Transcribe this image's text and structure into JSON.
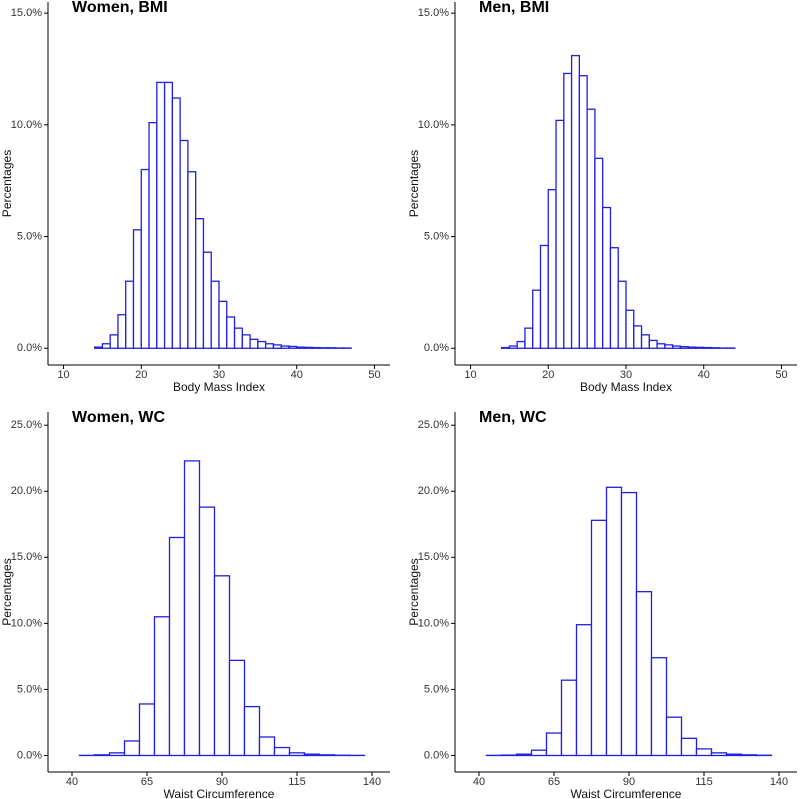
{
  "chart_data": [
    {
      "type": "histogram",
      "title": "Women, BMI",
      "x_label": "Body Mass Index",
      "y_label": "Percentages",
      "color": "#2020e0",
      "bins": [
        10,
        11,
        12,
        13,
        14,
        15,
        16,
        17,
        18,
        19,
        20,
        21,
        22,
        23,
        24,
        25,
        26,
        27,
        28,
        29,
        30,
        31,
        32,
        33,
        34,
        35,
        36,
        37,
        38,
        39,
        40,
        41,
        42,
        43,
        44,
        45,
        46,
        47,
        48,
        49,
        50
      ],
      "values": [
        0,
        0,
        0,
        0,
        0.05,
        0.2,
        0.6,
        1.5,
        3.0,
        5.3,
        8.0,
        10.1,
        11.9,
        11.9,
        11.2,
        9.3,
        7.9,
        5.8,
        4.3,
        3.0,
        2.1,
        1.4,
        0.9,
        0.6,
        0.4,
        0.3,
        0.2,
        0.15,
        0.1,
        0.08,
        0.05,
        0.04,
        0.03,
        0.02,
        0.02,
        0.01,
        0.01,
        0,
        0,
        0
      ],
      "xlim": [
        8,
        52
      ],
      "xticks": [
        10,
        20,
        30,
        40,
        50
      ],
      "ylim": [
        -0.75,
        15.5
      ],
      "yticks": [
        {
          "value": 0,
          "label": "0.0%"
        },
        {
          "value": 5,
          "label": "5.0%"
        },
        {
          "value": 10,
          "label": "10.0%"
        },
        {
          "value": 15,
          "label": "15.0%"
        }
      ]
    },
    {
      "type": "histogram",
      "title": "Men, BMI",
      "x_label": "Body Mass Index",
      "y_label": "Percentages",
      "color": "#2020e0",
      "bins": [
        10,
        11,
        12,
        13,
        14,
        15,
        16,
        17,
        18,
        19,
        20,
        21,
        22,
        23,
        24,
        25,
        26,
        27,
        28,
        29,
        30,
        31,
        32,
        33,
        34,
        35,
        36,
        37,
        38,
        39,
        40,
        41,
        42,
        43,
        44,
        45,
        46,
        47,
        48,
        49,
        50
      ],
      "values": [
        0,
        0,
        0,
        0,
        0.03,
        0.1,
        0.3,
        0.9,
        2.6,
        4.6,
        7.1,
        10.2,
        12.3,
        13.1,
        12.2,
        10.7,
        8.5,
        6.3,
        4.5,
        3.0,
        1.7,
        1.0,
        0.6,
        0.35,
        0.2,
        0.15,
        0.1,
        0.07,
        0.05,
        0.04,
        0.03,
        0.02,
        0.01,
        0.01,
        0,
        0,
        0,
        0,
        0,
        0
      ],
      "xlim": [
        8,
        52
      ],
      "xticks": [
        10,
        20,
        30,
        40,
        50
      ],
      "ylim": [
        -0.75,
        15.5
      ],
      "yticks": [
        {
          "value": 0,
          "label": "0.0%"
        },
        {
          "value": 5,
          "label": "5.0%"
        },
        {
          "value": 10,
          "label": "10.0%"
        },
        {
          "value": 15,
          "label": "15.0%"
        }
      ]
    },
    {
      "type": "histogram",
      "title": "Women, WC",
      "x_label": "Waist Circumference",
      "y_label": "Percentages",
      "color": "#2020e0",
      "bins": [
        37.5,
        42.5,
        47.5,
        52.5,
        57.5,
        62.5,
        67.5,
        72.5,
        77.5,
        82.5,
        87.5,
        92.5,
        97.5,
        102.5,
        107.5,
        112.5,
        117.5,
        122.5,
        127.5,
        132.5,
        137.5,
        142.5
      ],
      "values": [
        0,
        0.01,
        0.05,
        0.2,
        1.1,
        3.9,
        10.5,
        16.5,
        22.3,
        18.8,
        13.6,
        7.2,
        3.7,
        1.4,
        0.6,
        0.2,
        0.1,
        0.05,
        0.02,
        0.01,
        0
      ],
      "xlim": [
        32,
        146
      ],
      "xticks": [
        40,
        65,
        90,
        115,
        140
      ],
      "ylim": [
        -1.25,
        26
      ],
      "yticks": [
        {
          "value": 0,
          "label": "0.0%"
        },
        {
          "value": 5,
          "label": "5.0%"
        },
        {
          "value": 10,
          "label": "10.0%"
        },
        {
          "value": 15,
          "label": "15.0%"
        },
        {
          "value": 20,
          "label": "20.0%"
        },
        {
          "value": 25,
          "label": "25.0%"
        }
      ]
    },
    {
      "type": "histogram",
      "title": "Men, WC",
      "x_label": "Waist Circumference",
      "y_label": "Percentages",
      "color": "#2020e0",
      "bins": [
        37.5,
        42.5,
        47.5,
        52.5,
        57.5,
        62.5,
        67.5,
        72.5,
        77.5,
        82.5,
        87.5,
        92.5,
        97.5,
        102.5,
        107.5,
        112.5,
        117.5,
        122.5,
        127.5,
        132.5,
        137.5,
        142.5
      ],
      "values": [
        0,
        0.01,
        0.03,
        0.1,
        0.4,
        1.7,
        5.7,
        9.9,
        17.8,
        20.3,
        19.9,
        12.4,
        7.4,
        2.9,
        1.3,
        0.5,
        0.2,
        0.1,
        0.05,
        0.02,
        0
      ],
      "xlim": [
        32,
        146
      ],
      "xticks": [
        40,
        65,
        90,
        115,
        140
      ],
      "ylim": [
        -1.25,
        26
      ],
      "yticks": [
        {
          "value": 0,
          "label": "0.0%"
        },
        {
          "value": 5,
          "label": "5.0%"
        },
        {
          "value": 10,
          "label": "10.0%"
        },
        {
          "value": 15,
          "label": "15.0%"
        },
        {
          "value": 20,
          "label": "20.0%"
        },
        {
          "value": 25,
          "label": "25.0%"
        }
      ]
    }
  ]
}
